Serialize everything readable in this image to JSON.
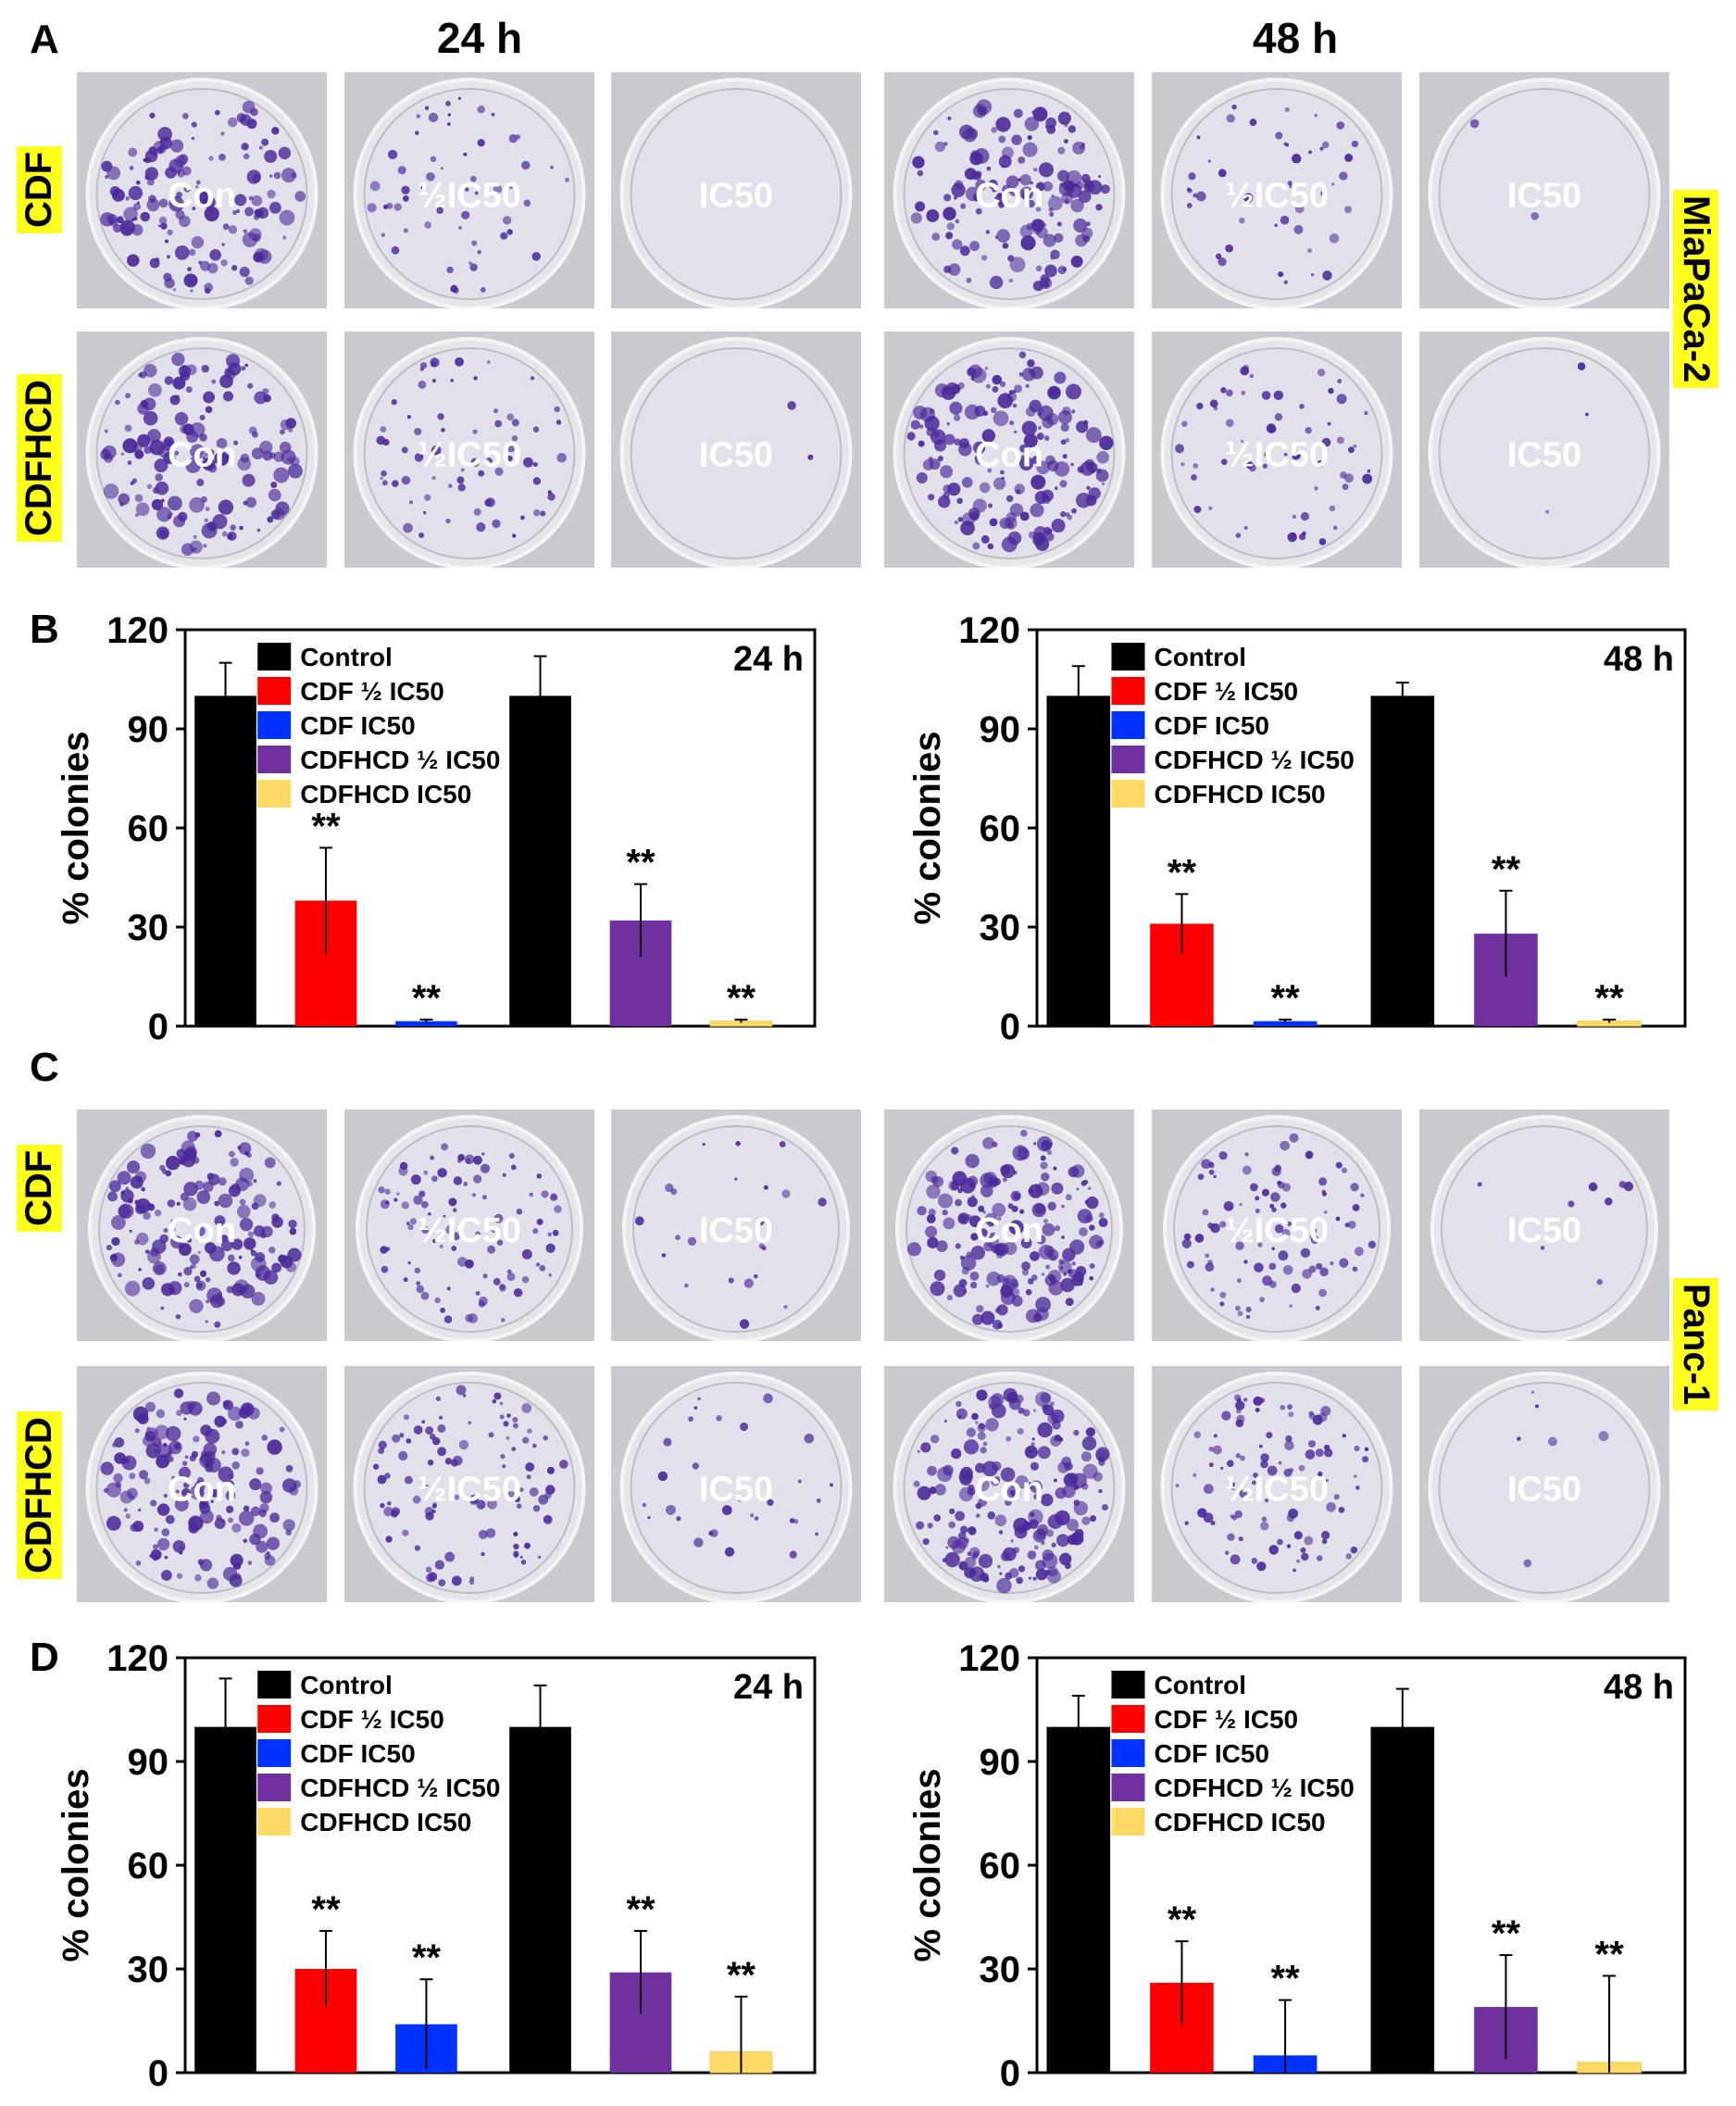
{
  "panels": {
    "A": "A",
    "B": "B",
    "C": "C",
    "D": "D"
  },
  "time_headers": [
    "24 h",
    "48 h"
  ],
  "row_labels": {
    "cdf": "CDF",
    "cdfhcd": "CDFHCD"
  },
  "cell_lines": {
    "top": "MiaPaCa-2",
    "bottom": "Panc-1"
  },
  "dish_labels": [
    "Con",
    "½IC50",
    "IC50"
  ],
  "colors": {
    "control": "#000000",
    "cdf_half": "#ff0000",
    "cdf_ic50": "#0033ff",
    "cdfhcd_half": "#7030a0",
    "cdfhcd_ic50": "#ffd966",
    "highlight": "#ffff1e",
    "stain": "#4b2a9a"
  },
  "chart_data": [
    {
      "id": "B-24h",
      "type": "bar",
      "time_label": "24 h",
      "ylabel": "% colonies",
      "ylim": [
        0,
        120
      ],
      "yticks": [
        0,
        30,
        60,
        90,
        120
      ],
      "legend": [
        "Control",
        "CDF ½ IC50",
        "CDF IC50",
        "CDFHCD ½ IC50",
        "CDFHCD IC50"
      ],
      "significance": "**",
      "groups": [
        {
          "bars": [
            {
              "series": "Control",
              "value": 100,
              "error": 10,
              "sig": ""
            },
            {
              "series": "CDF ½ IC50",
              "value": 38,
              "error": 16,
              "sig": "**"
            },
            {
              "series": "CDF IC50",
              "value": 1.5,
              "error": 0.5,
              "sig": "**"
            }
          ]
        },
        {
          "bars": [
            {
              "series": "Control",
              "value": 100,
              "error": 12,
              "sig": ""
            },
            {
              "series": "CDFHCD ½ IC50",
              "value": 32,
              "error": 11,
              "sig": "**"
            },
            {
              "series": "CDFHCD IC50",
              "value": 1.5,
              "error": 0.5,
              "sig": "**"
            }
          ]
        }
      ]
    },
    {
      "id": "B-48h",
      "type": "bar",
      "time_label": "48 h",
      "ylabel": "% colonies",
      "ylim": [
        0,
        120
      ],
      "yticks": [
        0,
        30,
        60,
        90,
        120
      ],
      "legend": [
        "Control",
        "CDF ½ IC50",
        "CDF IC50",
        "CDFHCD ½ IC50",
        "CDFHCD IC50"
      ],
      "significance": "**",
      "groups": [
        {
          "bars": [
            {
              "series": "Control",
              "value": 100,
              "error": 9,
              "sig": ""
            },
            {
              "series": "CDF ½ IC50",
              "value": 31,
              "error": 9,
              "sig": "**"
            },
            {
              "series": "CDF IC50",
              "value": 1.5,
              "error": 0.5,
              "sig": "**"
            }
          ]
        },
        {
          "bars": [
            {
              "series": "Control",
              "value": 100,
              "error": 4,
              "sig": ""
            },
            {
              "series": "CDFHCD ½ IC50",
              "value": 28,
              "error": 13,
              "sig": "**"
            },
            {
              "series": "CDFHCD IC50",
              "value": 1.5,
              "error": 0.5,
              "sig": "**"
            }
          ]
        }
      ]
    },
    {
      "id": "D-24h",
      "type": "bar",
      "time_label": "24 h",
      "ylabel": "% colonies",
      "ylim": [
        0,
        120
      ],
      "yticks": [
        0,
        30,
        60,
        90,
        120
      ],
      "legend": [
        "Control",
        "CDF ½ IC50",
        "CDF IC50",
        "CDFHCD ½ IC50",
        "CDFHCD IC50"
      ],
      "significance": "**",
      "groups": [
        {
          "bars": [
            {
              "series": "Control",
              "value": 100,
              "error": 14,
              "sig": ""
            },
            {
              "series": "CDF ½ IC50",
              "value": 30,
              "error": 11,
              "sig": "**"
            },
            {
              "series": "CDF IC50",
              "value": 14,
              "error": 13,
              "sig": "**"
            }
          ]
        },
        {
          "bars": [
            {
              "series": "Control",
              "value": 100,
              "error": 12,
              "sig": ""
            },
            {
              "series": "CDFHCD ½ IC50",
              "value": 29,
              "error": 12,
              "sig": "**"
            },
            {
              "series": "CDFHCD IC50",
              "value": 6,
              "error": 16,
              "sig": "**"
            }
          ]
        }
      ]
    },
    {
      "id": "D-48h",
      "type": "bar",
      "time_label": "48 h",
      "ylabel": "% colonies",
      "ylim": [
        0,
        120
      ],
      "yticks": [
        0,
        30,
        60,
        90,
        120
      ],
      "legend": [
        "Control",
        "CDF ½ IC50",
        "CDF IC50",
        "CDFHCD ½ IC50",
        "CDFHCD IC50"
      ],
      "significance": "**",
      "groups": [
        {
          "bars": [
            {
              "series": "Control",
              "value": 100,
              "error": 9,
              "sig": ""
            },
            {
              "series": "CDF ½ IC50",
              "value": 26,
              "error": 12,
              "sig": "**"
            },
            {
              "series": "CDF IC50",
              "value": 5,
              "error": 16,
              "sig": "**"
            }
          ]
        },
        {
          "bars": [
            {
              "series": "Control",
              "value": 100,
              "error": 11,
              "sig": ""
            },
            {
              "series": "CDFHCD ½ IC50",
              "value": 19,
              "error": 15,
              "sig": "**"
            },
            {
              "series": "CDFHCD IC50",
              "value": 3,
              "error": 25,
              "sig": "**"
            }
          ]
        }
      ]
    }
  ]
}
